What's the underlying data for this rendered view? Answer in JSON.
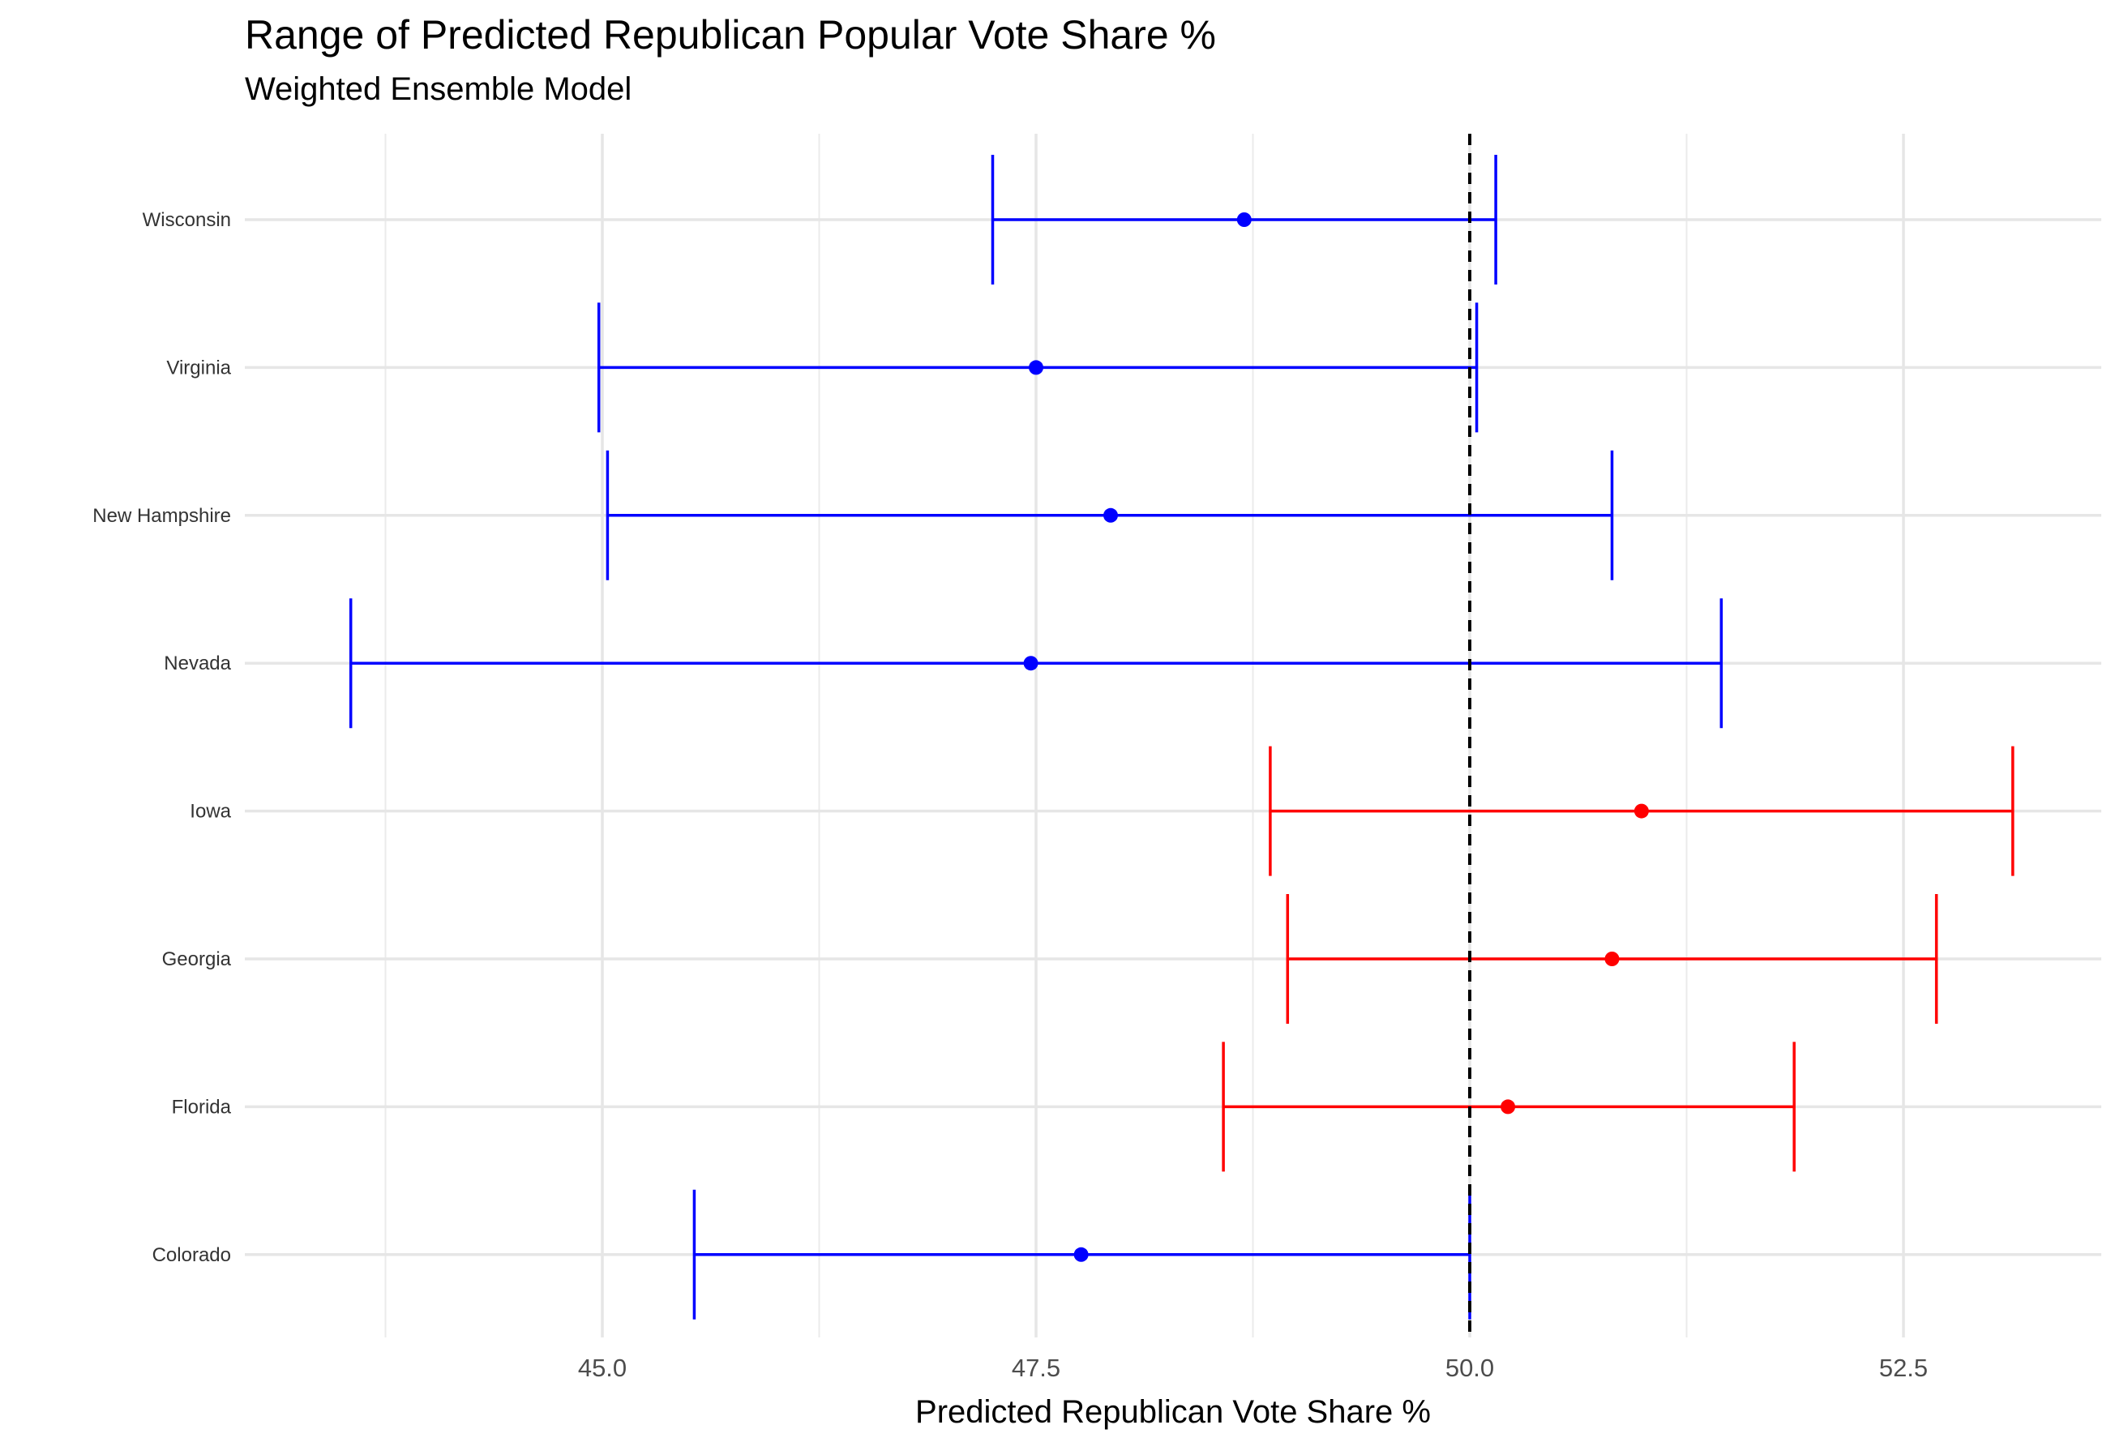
{
  "chart_data": {
    "type": "errorbar",
    "title": "Range of Predicted Republican Popular Vote Share %",
    "subtitle": "Weighted Ensemble Model",
    "xlabel": "Predicted Republican Vote Share %",
    "ylabel": "",
    "xlim": [
      43.0,
      53.5
    ],
    "x_ticks": [
      45.0,
      47.5,
      50.0,
      52.5
    ],
    "x_tick_labels": [
      "45.0",
      "47.5",
      "50.0",
      "52.5"
    ],
    "reference_line": {
      "x": 50.0,
      "style": "dashed",
      "color": "#000000"
    },
    "grid": true,
    "colors": {
      "dem": "#0000ff",
      "rep": "#ff0000"
    },
    "series": [
      {
        "state": "Wisconsin",
        "low": 47.25,
        "mid": 48.7,
        "high": 50.15,
        "color": "#0000ff"
      },
      {
        "state": "Virginia",
        "low": 44.98,
        "mid": 47.5,
        "high": 50.04,
        "color": "#0000ff"
      },
      {
        "state": "New Hampshire",
        "low": 45.03,
        "mid": 47.93,
        "high": 50.82,
        "color": "#0000ff"
      },
      {
        "state": "Nevada",
        "low": 43.55,
        "mid": 47.47,
        "high": 51.45,
        "color": "#0000ff"
      },
      {
        "state": "Iowa",
        "low": 48.85,
        "mid": 50.99,
        "high": 53.13,
        "color": "#ff0000"
      },
      {
        "state": "Georgia",
        "low": 48.95,
        "mid": 50.82,
        "high": 52.69,
        "color": "#ff0000"
      },
      {
        "state": "Florida",
        "low": 48.58,
        "mid": 50.22,
        "high": 51.87,
        "color": "#ff0000"
      },
      {
        "state": "Colorado",
        "low": 45.53,
        "mid": 47.76,
        "high": 50.0,
        "color": "#0000ff"
      }
    ]
  }
}
